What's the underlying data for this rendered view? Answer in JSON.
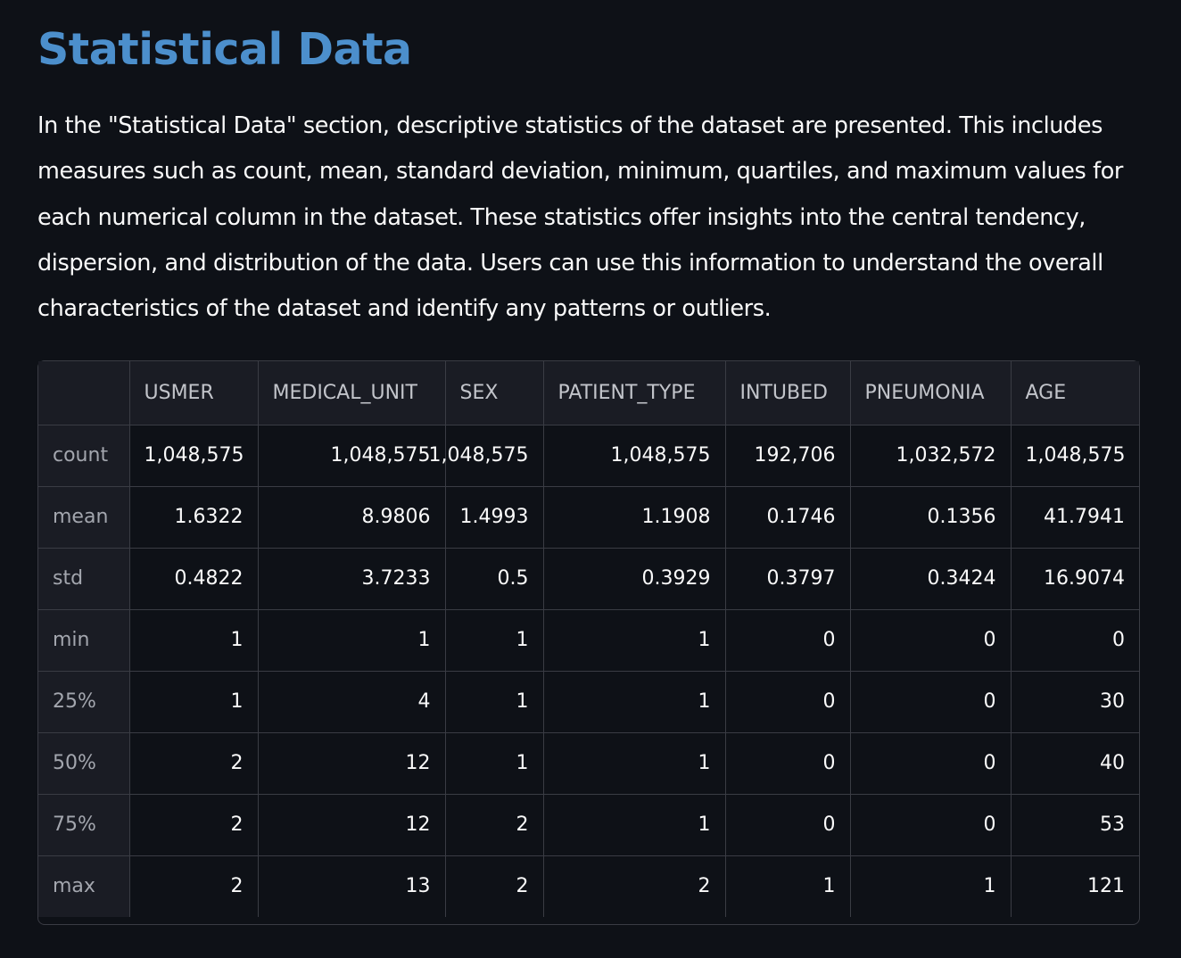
{
  "page": {
    "title": "Statistical Data",
    "intro": "In the \"Statistical Data\" section, descriptive statistics of the dataset are presented. This includes measures such as count, mean, standard deviation, minimum, quartiles, and maximum values for each numerical column in the dataset. These statistics offer insights into the central tendency, dispersion, and distribution of the data. Users can use this information to understand the overall characteristics of the dataset and identify any patterns or outliers."
  },
  "table": {
    "index_header": "",
    "columns": [
      "USMER",
      "MEDICAL_UNIT",
      "SEX",
      "PATIENT_TYPE",
      "INTUBED",
      "PNEUMONIA",
      "AGE"
    ],
    "rows": [
      {
        "label": "count",
        "values": [
          "1,048,575",
          "1,048,575",
          "1,048,575",
          "1,048,575",
          "192,706",
          "1,032,572",
          "1,048,575"
        ]
      },
      {
        "label": "mean",
        "values": [
          "1.6322",
          "8.9806",
          "1.4993",
          "1.1908",
          "0.1746",
          "0.1356",
          "41.7941"
        ]
      },
      {
        "label": "std",
        "values": [
          "0.4822",
          "3.7233",
          "0.5",
          "0.3929",
          "0.3797",
          "0.3424",
          "16.9074"
        ]
      },
      {
        "label": "min",
        "values": [
          "1",
          "1",
          "1",
          "1",
          "0",
          "0",
          "0"
        ]
      },
      {
        "label": "25%",
        "values": [
          "1",
          "4",
          "1",
          "1",
          "0",
          "0",
          "30"
        ]
      },
      {
        "label": "50%",
        "values": [
          "2",
          "12",
          "1",
          "1",
          "0",
          "0",
          "40"
        ]
      },
      {
        "label": "75%",
        "values": [
          "2",
          "12",
          "2",
          "1",
          "0",
          "0",
          "53"
        ]
      },
      {
        "label": "max",
        "values": [
          "2",
          "13",
          "2",
          "2",
          "1",
          "1",
          "121"
        ]
      }
    ]
  },
  "colors": {
    "background": "#0e1117",
    "title": "#4c8fcc",
    "text": "#fafafa",
    "header_bg": "#1a1c24",
    "border": "#3a3c44"
  }
}
